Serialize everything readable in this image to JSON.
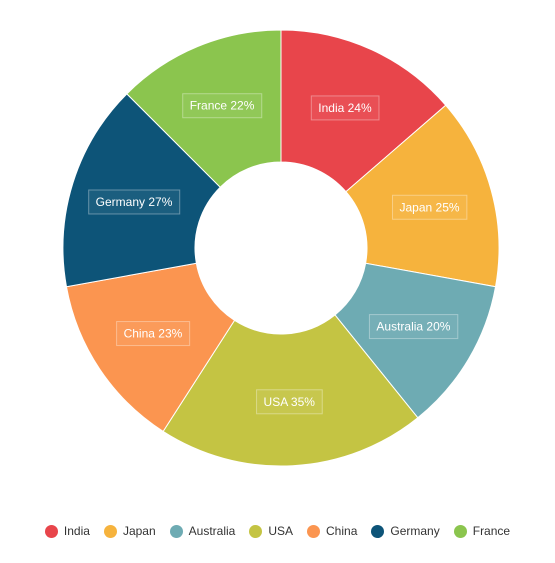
{
  "chart_data": {
    "type": "pie",
    "variant": "donut",
    "title": "",
    "categories": [
      "India",
      "Japan",
      "Australia",
      "USA",
      "China",
      "Germany",
      "France"
    ],
    "values": [
      24,
      25,
      20,
      35,
      23,
      27,
      22
    ],
    "labels": [
      "India 24%",
      "Japan 25%",
      "Australia 20%",
      "USA 35%",
      "China 23%",
      "Germany 27%",
      "France 22%"
    ],
    "colors": [
      "#e8454b",
      "#f6b33d",
      "#6eabb3",
      "#c4c443",
      "#fb9550",
      "#0d5478",
      "#8bc54e"
    ],
    "legend": {
      "position": "bottom",
      "items": [
        "India",
        "Japan",
        "Australia",
        "USA",
        "China",
        "Germany",
        "France"
      ]
    }
  }
}
